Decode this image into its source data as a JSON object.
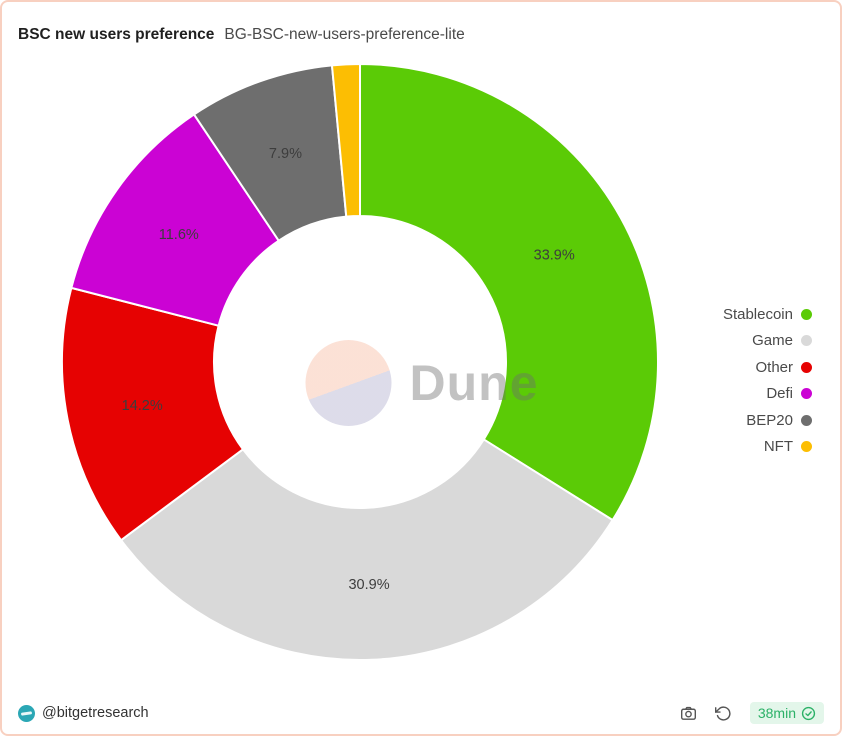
{
  "header": {
    "title": "BSC new users preference",
    "subtitle": "BG-BSC-new-users-preference-lite"
  },
  "chart_data": {
    "type": "pie",
    "variant": "donut",
    "title": "BSC new users preference",
    "start_angle_deg": 0,
    "direction": "clockwise",
    "inner_radius_ratio": 0.49,
    "legend_position": "right",
    "data_labels": "percent",
    "series": [
      {
        "name": "Stablecoin",
        "value": 33.9,
        "label": "33.9%",
        "color": "#5bcb06"
      },
      {
        "name": "Game",
        "value": 30.9,
        "label": "30.9%",
        "color": "#d9d9d9"
      },
      {
        "name": "Other",
        "value": 14.2,
        "label": "14.2%",
        "color": "#e60202"
      },
      {
        "name": "Defi",
        "value": 11.6,
        "label": "11.6%",
        "color": "#cb03d4"
      },
      {
        "name": "BEP20",
        "value": 7.9,
        "label": "7.9%",
        "color": "#6e6e6e"
      },
      {
        "name": "NFT",
        "value": 1.5,
        "label": "",
        "color": "#fcbe03"
      }
    ]
  },
  "watermark": {
    "text": "Dune"
  },
  "footer": {
    "author": "@bitgetresearch",
    "refresh_age": "38min"
  },
  "colors": {
    "border": "#f8d0c0",
    "badge_bg": "#e3f6ea",
    "badge_text": "#2bb167",
    "avatar": "#2ba7b5"
  }
}
